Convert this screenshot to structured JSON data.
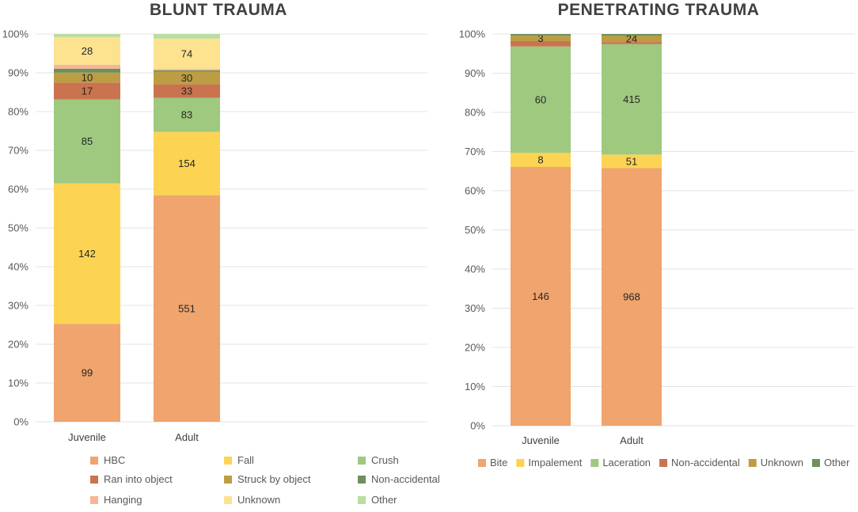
{
  "chart_data": [
    {
      "type": "bar",
      "stacked": true,
      "normalized": true,
      "title": "BLUNT TRAUMA",
      "categories": [
        "Juvenile",
        "Adult"
      ],
      "y_tick_labels": [
        "0%",
        "10%",
        "20%",
        "30%",
        "40%",
        "50%",
        "60%",
        "70%",
        "80%",
        "90%",
        "100%"
      ],
      "ylim": [
        0,
        100
      ],
      "legend_position": "bottom",
      "series": [
        {
          "name": "HBC",
          "color": "#f0a46e",
          "values": [
            99,
            551
          ],
          "labels": [
            "99",
            "551"
          ]
        },
        {
          "name": "Fall",
          "color": "#fdd353",
          "values": [
            142,
            154
          ],
          "labels": [
            "142",
            "154"
          ]
        },
        {
          "name": "Crush",
          "color": "#9ec97f",
          "values": [
            85,
            83
          ],
          "labels": [
            "85",
            "83"
          ]
        },
        {
          "name": "Ran into object",
          "color": "#c9744f",
          "values": [
            17,
            33
          ],
          "labels": [
            "17",
            "33"
          ]
        },
        {
          "name": "Struck by object",
          "color": "#bd9d44",
          "values": [
            10,
            30
          ],
          "labels": [
            "10",
            "30"
          ]
        },
        {
          "name": "Non-accidental",
          "color": "#6e8f5c",
          "values": [
            4,
            4
          ],
          "labels": [
            "",
            ""
          ]
        },
        {
          "name": "Hanging",
          "color": "#f8b594",
          "values": [
            4,
            3
          ],
          "labels": [
            "",
            ""
          ]
        },
        {
          "name": "Unknown",
          "color": "#fde28f",
          "values": [
            28,
            74
          ],
          "labels": [
            "28",
            "74"
          ]
        },
        {
          "name": "Other",
          "color": "#b8dea0",
          "values": [
            3,
            11
          ],
          "labels": [
            "",
            ""
          ]
        }
      ]
    },
    {
      "type": "bar",
      "stacked": true,
      "normalized": true,
      "title": "PENETRATING TRAUMA",
      "categories": [
        "Juvenile",
        "Adult"
      ],
      "y_tick_labels": [
        "0%",
        "10%",
        "20%",
        "30%",
        "40%",
        "50%",
        "60%",
        "70%",
        "80%",
        "90%",
        "100%"
      ],
      "ylim": [
        0,
        100
      ],
      "legend_position": "bottom",
      "series": [
        {
          "name": "Bite",
          "color": "#f0a46e",
          "values": [
            146,
            968
          ],
          "labels": [
            "146",
            "968"
          ]
        },
        {
          "name": "Impalement",
          "color": "#fdd353",
          "values": [
            8,
            51
          ],
          "labels": [
            "8",
            "51"
          ]
        },
        {
          "name": "Laceration",
          "color": "#9ec97f",
          "values": [
            60,
            415
          ],
          "labels": [
            "60",
            "415"
          ]
        },
        {
          "name": "Non-accidental",
          "color": "#c9744f",
          "values": [
            3,
            8
          ],
          "labels": [
            "",
            ""
          ]
        },
        {
          "name": "Unknown",
          "color": "#bd9d44",
          "values": [
            3,
            24
          ],
          "labels": [
            "3",
            "24"
          ]
        },
        {
          "name": "Other",
          "color": "#6e8f5c",
          "values": [
            1,
            6
          ],
          "labels": [
            "",
            ""
          ]
        }
      ]
    }
  ]
}
